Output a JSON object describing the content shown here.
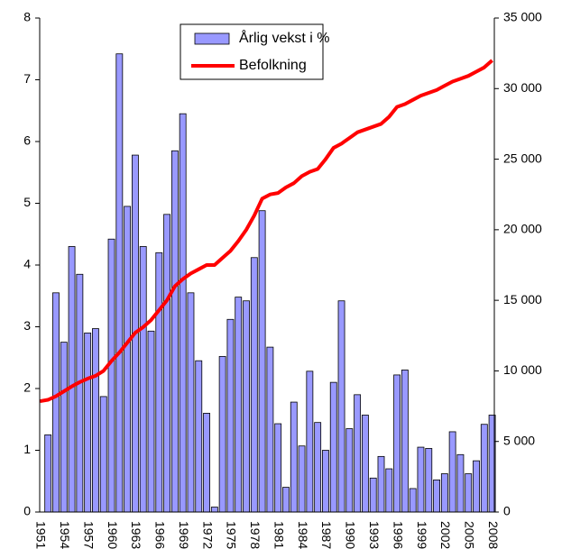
{
  "chart_data": {
    "type": "bar_line",
    "categories": [
      "1951",
      null,
      null,
      "1954",
      null,
      null,
      "1957",
      null,
      null,
      "1960",
      null,
      null,
      "1963",
      null,
      null,
      "1966",
      null,
      null,
      "1969",
      null,
      null,
      "1972",
      null,
      null,
      "1975",
      null,
      null,
      "1978",
      null,
      null,
      "1981",
      null,
      null,
      "1984",
      null,
      null,
      "1987",
      null,
      null,
      "1990",
      null,
      null,
      "1993",
      null,
      null,
      "1996",
      null,
      null,
      "1999",
      null,
      null,
      "2002",
      null,
      null,
      "2005",
      null,
      null,
      "2008"
    ],
    "series": [
      {
        "name": "Årlig vekst i %",
        "type": "bar",
        "color": "#9999ff",
        "axis": "y",
        "values": [
          null,
          1.25,
          3.55,
          2.75,
          4.3,
          3.85,
          2.9,
          2.97,
          1.87,
          4.42,
          7.42,
          4.95,
          5.78,
          4.3,
          2.93,
          4.2,
          4.82,
          5.85,
          6.45,
          3.55,
          2.45,
          1.6,
          0.08,
          2.52,
          3.12,
          3.48,
          3.42,
          4.12,
          4.88,
          2.67,
          1.43,
          0.4,
          1.78,
          1.07,
          2.28,
          1.45,
          1.0,
          2.1,
          3.42,
          1.35,
          1.9,
          1.57,
          0.55,
          0.9,
          0.7,
          2.22,
          2.3,
          0.38,
          1.05,
          1.03,
          0.52,
          0.62,
          1.3,
          0.93,
          0.62,
          0.83,
          1.42,
          1.57
        ]
      },
      {
        "name": "Befolkning",
        "type": "line",
        "color": "#ff0000",
        "axis": "y2",
        "values": [
          7850,
          7950,
          8200,
          8550,
          8900,
          9200,
          9450,
          9650,
          10000,
          10700,
          11300,
          12000,
          12700,
          13100,
          13600,
          14300,
          15000,
          16000,
          16500,
          16900,
          17200,
          17500,
          17500,
          18000,
          18500,
          19200,
          20000,
          21000,
          22200,
          22500,
          22600,
          23000,
          23300,
          23800,
          24100,
          24300,
          25000,
          25800,
          26100,
          26500,
          26900,
          27100,
          27300,
          27500,
          28000,
          28700,
          28900,
          29200,
          29500,
          29700,
          29900,
          30200,
          30500,
          30700,
          30900,
          31200,
          31500,
          32000
        ]
      }
    ],
    "ylim": [
      0,
      8
    ],
    "yticks": [
      0,
      1,
      2,
      3,
      4,
      5,
      6,
      7,
      8
    ],
    "y2lim": [
      0,
      35000
    ],
    "y2ticks": [
      0,
      {
        "value": 5000,
        "label": "5 000"
      },
      {
        "value": 10000,
        "label": "10 000"
      },
      {
        "value": 15000,
        "label": "15 000"
      },
      {
        "value": 20000,
        "label": "20 000"
      },
      {
        "value": 25000,
        "label": "25 000"
      },
      {
        "value": 30000,
        "label": "30 000"
      },
      {
        "value": 35000,
        "label": "35 000"
      }
    ],
    "grid": false,
    "legend": "top"
  }
}
